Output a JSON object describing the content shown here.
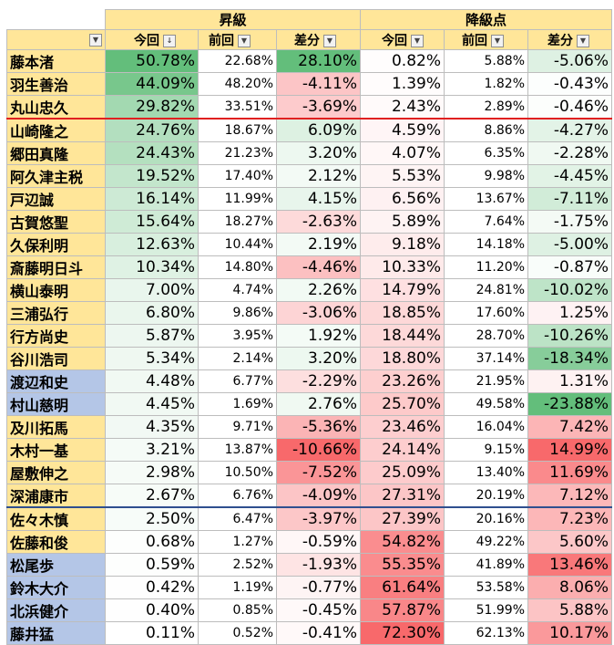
{
  "headers": {
    "promotion_group": "昇級",
    "demotion_group": "降級点",
    "this_time": "今回",
    "last_time": "前回",
    "difference": "差分",
    "sort_icon": "sort-descending-dropdown-icon",
    "dropdown_icon": "filter-dropdown-icon"
  },
  "colors": {
    "header_fill": "#ffe699",
    "name_yellow": "#ffe699",
    "name_blue": "#b4c6e7",
    "green_strong": "#63be7b",
    "red_strong": "#f8696b",
    "red_separator": "#e02020",
    "blue_separator": "#2f4f8f"
  },
  "rows": [
    {
      "name": "藤本渚",
      "name_color": "yellow",
      "p_now": "50.78%",
      "p_prev": "22.68%",
      "p_diff": "28.10%",
      "d_now": "0.82%",
      "d_prev": "5.88%",
      "d_diff": "-5.06%"
    },
    {
      "name": "羽生善治",
      "name_color": "yellow",
      "p_now": "44.09%",
      "p_prev": "48.20%",
      "p_diff": "-4.11%",
      "d_now": "1.39%",
      "d_prev": "1.82%",
      "d_diff": "-0.43%"
    },
    {
      "name": "丸山忠久",
      "name_color": "yellow",
      "p_now": "29.82%",
      "p_prev": "33.51%",
      "p_diff": "-3.69%",
      "d_now": "2.43%",
      "d_prev": "2.89%",
      "d_diff": "-0.46%"
    },
    {
      "name": "山崎隆之",
      "name_color": "yellow",
      "p_now": "24.76%",
      "p_prev": "18.67%",
      "p_diff": "6.09%",
      "d_now": "4.59%",
      "d_prev": "8.86%",
      "d_diff": "-4.27%"
    },
    {
      "name": "郷田真隆",
      "name_color": "yellow",
      "p_now": "24.43%",
      "p_prev": "21.23%",
      "p_diff": "3.20%",
      "d_now": "4.07%",
      "d_prev": "6.35%",
      "d_diff": "-2.28%"
    },
    {
      "name": "阿久津主税",
      "name_color": "yellow",
      "p_now": "19.52%",
      "p_prev": "17.40%",
      "p_diff": "2.12%",
      "d_now": "5.53%",
      "d_prev": "9.98%",
      "d_diff": "-4.45%"
    },
    {
      "name": "戸辺誠",
      "name_color": "yellow",
      "p_now": "16.14%",
      "p_prev": "11.99%",
      "p_diff": "4.15%",
      "d_now": "6.56%",
      "d_prev": "13.67%",
      "d_diff": "-7.11%"
    },
    {
      "name": "古賀悠聖",
      "name_color": "yellow",
      "p_now": "15.64%",
      "p_prev": "18.27%",
      "p_diff": "-2.63%",
      "d_now": "5.89%",
      "d_prev": "7.64%",
      "d_diff": "-1.75%"
    },
    {
      "name": "久保利明",
      "name_color": "yellow",
      "p_now": "12.63%",
      "p_prev": "10.44%",
      "p_diff": "2.19%",
      "d_now": "9.18%",
      "d_prev": "14.18%",
      "d_diff": "-5.00%"
    },
    {
      "name": "斎藤明日斗",
      "name_color": "yellow",
      "p_now": "10.34%",
      "p_prev": "14.80%",
      "p_diff": "-4.46%",
      "d_now": "10.33%",
      "d_prev": "11.20%",
      "d_diff": "-0.87%"
    },
    {
      "name": "横山泰明",
      "name_color": "yellow",
      "p_now": "7.00%",
      "p_prev": "4.74%",
      "p_diff": "2.26%",
      "d_now": "14.79%",
      "d_prev": "24.81%",
      "d_diff": "-10.02%"
    },
    {
      "name": "三浦弘行",
      "name_color": "yellow",
      "p_now": "6.80%",
      "p_prev": "9.86%",
      "p_diff": "-3.06%",
      "d_now": "18.85%",
      "d_prev": "17.60%",
      "d_diff": "1.25%"
    },
    {
      "name": "行方尚史",
      "name_color": "yellow",
      "p_now": "5.87%",
      "p_prev": "3.95%",
      "p_diff": "1.92%",
      "d_now": "18.44%",
      "d_prev": "28.70%",
      "d_diff": "-10.26%"
    },
    {
      "name": "谷川浩司",
      "name_color": "yellow",
      "p_now": "5.34%",
      "p_prev": "2.14%",
      "p_diff": "3.20%",
      "d_now": "18.80%",
      "d_prev": "37.14%",
      "d_diff": "-18.34%"
    },
    {
      "name": "渡辺和史",
      "name_color": "blue",
      "p_now": "4.48%",
      "p_prev": "6.77%",
      "p_diff": "-2.29%",
      "d_now": "23.26%",
      "d_prev": "21.95%",
      "d_diff": "1.31%"
    },
    {
      "name": "村山慈明",
      "name_color": "blue",
      "p_now": "4.45%",
      "p_prev": "1.69%",
      "p_diff": "2.76%",
      "d_now": "25.70%",
      "d_prev": "49.58%",
      "d_diff": "-23.88%"
    },
    {
      "name": "及川拓馬",
      "name_color": "yellow",
      "p_now": "4.35%",
      "p_prev": "9.71%",
      "p_diff": "-5.36%",
      "d_now": "23.46%",
      "d_prev": "16.04%",
      "d_diff": "7.42%"
    },
    {
      "name": "木村一基",
      "name_color": "yellow",
      "p_now": "3.21%",
      "p_prev": "13.87%",
      "p_diff": "-10.66%",
      "d_now": "24.14%",
      "d_prev": "9.15%",
      "d_diff": "14.99%"
    },
    {
      "name": "屋敷伸之",
      "name_color": "yellow",
      "p_now": "2.98%",
      "p_prev": "10.50%",
      "p_diff": "-7.52%",
      "d_now": "25.09%",
      "d_prev": "13.40%",
      "d_diff": "11.69%"
    },
    {
      "name": "深浦康市",
      "name_color": "yellow",
      "p_now": "2.67%",
      "p_prev": "6.76%",
      "p_diff": "-4.09%",
      "d_now": "27.31%",
      "d_prev": "20.19%",
      "d_diff": "7.12%"
    },
    {
      "name": "佐々木慎",
      "name_color": "yellow",
      "p_now": "2.50%",
      "p_prev": "6.47%",
      "p_diff": "-3.97%",
      "d_now": "27.39%",
      "d_prev": "20.16%",
      "d_diff": "7.23%"
    },
    {
      "name": "佐藤和俊",
      "name_color": "yellow",
      "p_now": "0.68%",
      "p_prev": "1.27%",
      "p_diff": "-0.59%",
      "d_now": "54.82%",
      "d_prev": "49.22%",
      "d_diff": "5.60%"
    },
    {
      "name": "松尾歩",
      "name_color": "blue",
      "p_now": "0.59%",
      "p_prev": "2.52%",
      "p_diff": "-1.93%",
      "d_now": "55.35%",
      "d_prev": "41.89%",
      "d_diff": "13.46%"
    },
    {
      "name": "鈴木大介",
      "name_color": "blue",
      "p_now": "0.42%",
      "p_prev": "1.19%",
      "p_diff": "-0.77%",
      "d_now": "61.64%",
      "d_prev": "53.58%",
      "d_diff": "8.06%"
    },
    {
      "name": "北浜健介",
      "name_color": "blue",
      "p_now": "0.40%",
      "p_prev": "0.85%",
      "p_diff": "-0.45%",
      "d_now": "57.87%",
      "d_prev": "51.99%",
      "d_diff": "5.88%"
    },
    {
      "name": "藤井猛",
      "name_color": "blue",
      "p_now": "0.11%",
      "p_prev": "0.52%",
      "p_diff": "-0.41%",
      "d_now": "72.30%",
      "d_prev": "62.13%",
      "d_diff": "10.17%"
    }
  ],
  "separators": {
    "red_after_row": 3,
    "blue_after_row": 20
  }
}
